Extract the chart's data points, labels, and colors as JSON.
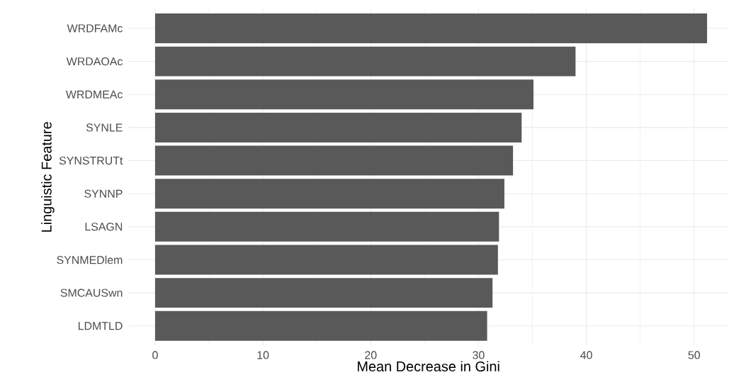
{
  "chart_data": {
    "type": "bar",
    "orientation": "horizontal",
    "xlabel": "Mean Decrease in Gini",
    "ylabel": "Linguistic Feature",
    "categories": [
      "WRDFAMc",
      "WRDAOAc",
      "WRDMEAc",
      "SYNLE",
      "SYNSTRUTt",
      "SYNNP",
      "LSAGN",
      "SYNMEDlem",
      "SMCAUSwn",
      "LDMTLD"
    ],
    "values": [
      51.2,
      39.0,
      35.1,
      34.0,
      33.2,
      32.4,
      31.9,
      31.8,
      31.3,
      30.8
    ],
    "color": "#595959",
    "xlim": [
      -2.5,
      53.2
    ],
    "xticks": [
      0,
      10,
      20,
      30,
      40,
      50
    ],
    "grid": true
  }
}
